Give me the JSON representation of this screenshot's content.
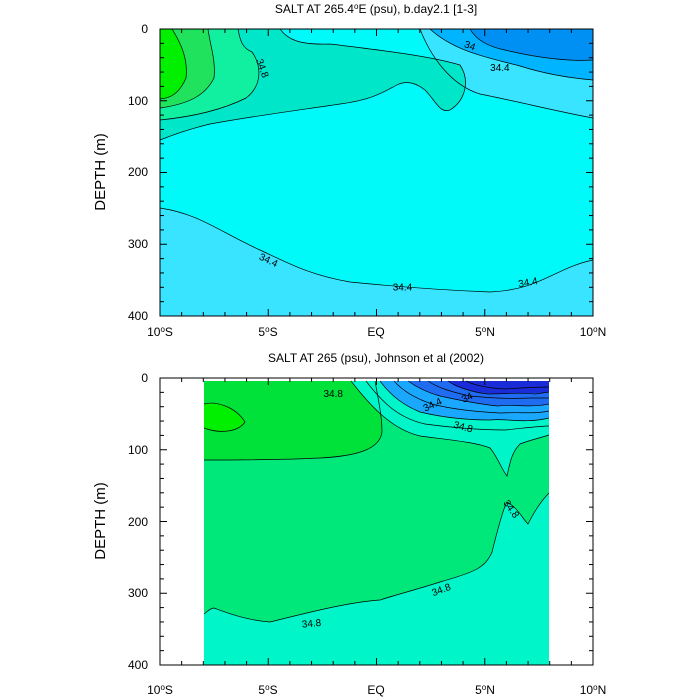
{
  "chart_data": [
    {
      "type": "contour",
      "title": "SALT AT 265.4°E (psu), b.day2.1 [1-3]",
      "title_parts": [
        "SALT AT 265.4",
        "o",
        "E (psu), b.day2.1 [1-3]"
      ],
      "ylabel": "DEPTH (m)",
      "xlim": [
        -10,
        10
      ],
      "ylim": [
        400,
        0
      ],
      "x_ticks": [
        {
          "value": -10,
          "num": "10",
          "hemi": "S"
        },
        {
          "value": -5,
          "num": "5",
          "hemi": "S"
        },
        {
          "value": 0,
          "num": "EQ",
          "hemi": ""
        },
        {
          "value": 5,
          "num": "5",
          "hemi": "N"
        },
        {
          "value": 10,
          "num": "10",
          "hemi": "N"
        }
      ],
      "y_ticks": [
        "0",
        "100",
        "200",
        "300",
        "400"
      ],
      "contour_labels": [
        {
          "text": "34.8",
          "x": -5.3,
          "y": 55,
          "rot": 70
        },
        {
          "text": "34",
          "x": 4.3,
          "y": 24,
          "rot": 20
        },
        {
          "text": "34.4",
          "x": 5.7,
          "y": 55,
          "rot": 0
        },
        {
          "text": "34.4",
          "x": -5.0,
          "y": 323,
          "rot": 25
        },
        {
          "text": "34.4",
          "x": 1.2,
          "y": 361,
          "rot": 0
        },
        {
          "text": "34.4",
          "x": 7.0,
          "y": 354,
          "rot": -10
        }
      ],
      "colors": {
        "light_cyan": "#38e4ff",
        "cyan": "#00fafa",
        "teal": "#00e6c8",
        "green_1": "#10f0a0",
        "green_2": "#20e25c",
        "green_3": "#00f000",
        "blue_1": "#00b4ff",
        "blue_2": "#0090f4"
      }
    },
    {
      "type": "contour",
      "title": "SALT AT 265 (psu), Johnson et al (2002)",
      "title_parts": [
        "SALT AT 265 (psu), Johnson et al (2002)"
      ],
      "ylabel": "DEPTH (m)",
      "xlim": [
        -10,
        10
      ],
      "ylim": [
        400,
        0
      ],
      "x_ticks": [
        {
          "value": -10,
          "num": "10",
          "hemi": "S"
        },
        {
          "value": -5,
          "num": "5",
          "hemi": "S"
        },
        {
          "value": 0,
          "num": "EQ",
          "hemi": ""
        },
        {
          "value": 5,
          "num": "5",
          "hemi": "N"
        },
        {
          "value": 10,
          "num": "10",
          "hemi": "N"
        }
      ],
      "y_ticks": [
        "0",
        "100",
        "200",
        "300",
        "400"
      ],
      "contour_labels": [
        {
          "text": "34.8",
          "x": -2.0,
          "y": 23,
          "rot": 0
        },
        {
          "text": "34",
          "x": 4.2,
          "y": 28,
          "rot": -25
        },
        {
          "text": "34.4",
          "x": 2.6,
          "y": 38,
          "rot": -25
        },
        {
          "text": "34.8",
          "x": 4.0,
          "y": 69,
          "rot": 15
        },
        {
          "text": "34.8",
          "x": 6.2,
          "y": 183,
          "rot": 55
        },
        {
          "text": "34.8",
          "x": 3.0,
          "y": 296,
          "rot": -20
        },
        {
          "text": "34.8",
          "x": -3.0,
          "y": 343,
          "rot": -5
        }
      ],
      "colors": {
        "mint": "#00f5c8",
        "green_light": "#00e87a",
        "green_mid": "#00e23a",
        "green_bright": "#00f000",
        "blue_light": "#1aa8ff",
        "blue_mid": "#1f6cf0",
        "blue_deep": "#1a2cd8"
      }
    }
  ]
}
